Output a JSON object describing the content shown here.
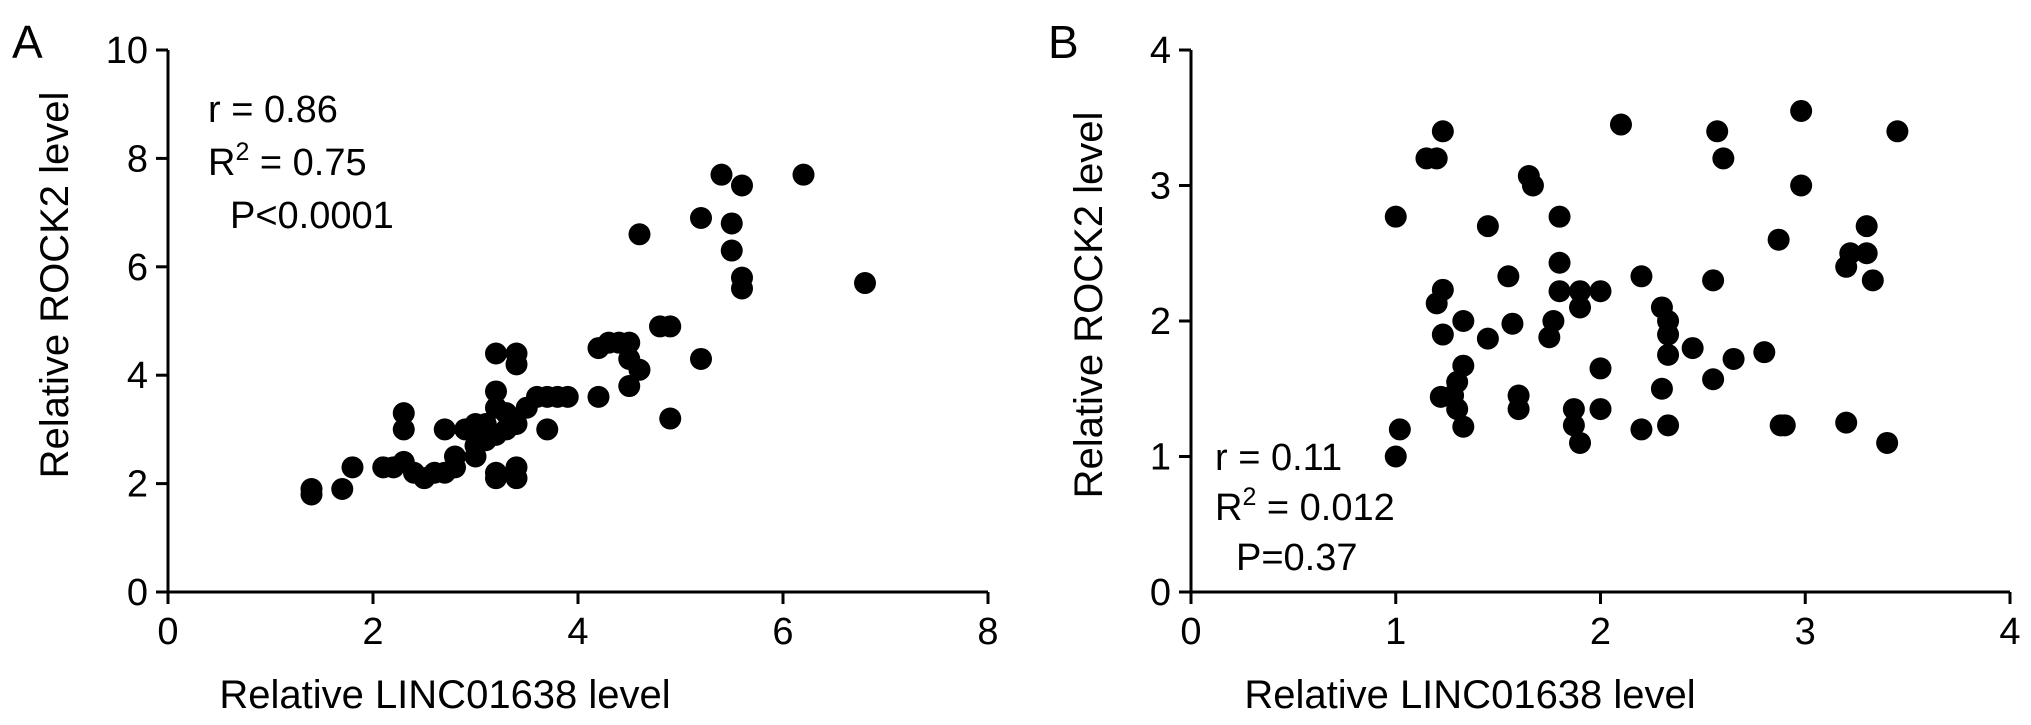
{
  "chart_data": [
    {
      "type": "scatter",
      "panel_label": "A",
      "title": "",
      "xlabel": "Relative LINC01638 level",
      "ylabel": "Relative ROCK2 level",
      "xlim": [
        0,
        8
      ],
      "ylim": [
        0,
        10
      ],
      "xticks": [
        "0",
        "2",
        "4",
        "6",
        "8"
      ],
      "yticks": [
        "0",
        "2",
        "4",
        "6",
        "8",
        "10"
      ],
      "grid": false,
      "annotations": [
        {
          "text": "r = 0.86"
        },
        {
          "text": "R",
          "sup": "2",
          "rest": " = 0.75"
        },
        {
          "text": "P<0.0001"
        }
      ],
      "points": [
        [
          1.4,
          1.8
        ],
        [
          1.4,
          1.9
        ],
        [
          1.7,
          1.9
        ],
        [
          1.8,
          2.3
        ],
        [
          2.1,
          2.3
        ],
        [
          2.2,
          2.3
        ],
        [
          2.3,
          2.4
        ],
        [
          2.3,
          3.0
        ],
        [
          2.3,
          3.3
        ],
        [
          2.4,
          2.2
        ],
        [
          2.5,
          2.1
        ],
        [
          2.6,
          2.2
        ],
        [
          2.7,
          2.2
        ],
        [
          2.7,
          3.0
        ],
        [
          2.8,
          2.3
        ],
        [
          2.8,
          2.5
        ],
        [
          2.9,
          3.0
        ],
        [
          3.0,
          2.5
        ],
        [
          3.0,
          3.1
        ],
        [
          3.0,
          2.7
        ],
        [
          3.1,
          2.8
        ],
        [
          3.1,
          3.1
        ],
        [
          3.2,
          2.9
        ],
        [
          3.2,
          3.4
        ],
        [
          3.2,
          3.7
        ],
        [
          3.2,
          4.4
        ],
        [
          3.2,
          2.2
        ],
        [
          3.2,
          2.1
        ],
        [
          3.3,
          3.3
        ],
        [
          3.3,
          3.0
        ],
        [
          3.4,
          3.1
        ],
        [
          3.4,
          4.4
        ],
        [
          3.4,
          4.2
        ],
        [
          3.4,
          2.1
        ],
        [
          3.4,
          2.3
        ],
        [
          3.5,
          3.4
        ],
        [
          3.6,
          3.6
        ],
        [
          3.7,
          3.0
        ],
        [
          3.7,
          3.6
        ],
        [
          3.8,
          3.6
        ],
        [
          3.9,
          3.6
        ],
        [
          4.2,
          3.6
        ],
        [
          4.2,
          4.5
        ],
        [
          4.3,
          4.6
        ],
        [
          4.4,
          4.6
        ],
        [
          4.5,
          4.6
        ],
        [
          4.5,
          4.3
        ],
        [
          4.5,
          3.8
        ],
        [
          4.6,
          4.1
        ],
        [
          4.6,
          6.6
        ],
        [
          4.8,
          4.9
        ],
        [
          4.9,
          4.9
        ],
        [
          4.9,
          3.2
        ],
        [
          5.2,
          6.9
        ],
        [
          5.2,
          4.3
        ],
        [
          5.4,
          7.7
        ],
        [
          5.5,
          6.8
        ],
        [
          5.5,
          6.3
        ],
        [
          5.6,
          7.5
        ],
        [
          5.6,
          5.8
        ],
        [
          5.6,
          5.6
        ],
        [
          6.2,
          7.7
        ],
        [
          6.8,
          5.7
        ]
      ]
    },
    {
      "type": "scatter",
      "panel_label": "B",
      "title": "",
      "xlabel": "Relative LINC01638 level",
      "ylabel": "Relative ROCK2 level",
      "xlim": [
        0,
        4
      ],
      "ylim": [
        0,
        4
      ],
      "xticks": [
        "0",
        "1",
        "2",
        "3",
        "4"
      ],
      "yticks": [
        "0",
        "1",
        "2",
        "3",
        "4"
      ],
      "grid": false,
      "annotations": [
        {
          "text": "r = 0.11"
        },
        {
          "text": "R",
          "sup": "2",
          "rest": " = 0.012"
        },
        {
          "text": "P=0.37"
        }
      ],
      "points": [
        [
          1.0,
          1.0
        ],
        [
          1.0,
          2.77
        ],
        [
          1.02,
          1.2
        ],
        [
          1.15,
          3.2
        ],
        [
          1.2,
          2.13
        ],
        [
          1.2,
          3.2
        ],
        [
          1.22,
          1.44
        ],
        [
          1.23,
          3.4
        ],
        [
          1.23,
          2.23
        ],
        [
          1.23,
          1.9
        ],
        [
          1.28,
          1.45
        ],
        [
          1.3,
          1.55
        ],
        [
          1.3,
          1.35
        ],
        [
          1.33,
          1.67
        ],
        [
          1.33,
          2.0
        ],
        [
          1.33,
          1.22
        ],
        [
          1.45,
          1.87
        ],
        [
          1.45,
          2.7
        ],
        [
          1.55,
          2.33
        ],
        [
          1.57,
          1.98
        ],
        [
          1.6,
          1.45
        ],
        [
          1.6,
          1.35
        ],
        [
          1.65,
          3.07
        ],
        [
          1.67,
          3.0
        ],
        [
          1.75,
          1.88
        ],
        [
          1.77,
          2.0
        ],
        [
          1.8,
          2.77
        ],
        [
          1.8,
          2.43
        ],
        [
          1.8,
          2.22
        ],
        [
          1.87,
          1.35
        ],
        [
          1.87,
          1.23
        ],
        [
          1.9,
          1.1
        ],
        [
          1.9,
          2.1
        ],
        [
          1.9,
          2.22
        ],
        [
          2.0,
          2.22
        ],
        [
          2.0,
          1.65
        ],
        [
          2.0,
          1.35
        ],
        [
          2.1,
          3.45
        ],
        [
          2.2,
          1.2
        ],
        [
          2.2,
          2.33
        ],
        [
          2.3,
          1.5
        ],
        [
          2.3,
          2.1
        ],
        [
          2.33,
          1.23
        ],
        [
          2.33,
          2.0
        ],
        [
          2.33,
          1.9
        ],
        [
          2.33,
          1.75
        ],
        [
          2.45,
          1.8
        ],
        [
          2.55,
          2.3
        ],
        [
          2.55,
          1.57
        ],
        [
          2.57,
          3.4
        ],
        [
          2.6,
          3.2
        ],
        [
          2.65,
          1.72
        ],
        [
          2.8,
          1.77
        ],
        [
          2.87,
          2.6
        ],
        [
          2.88,
          1.23
        ],
        [
          2.9,
          1.23
        ],
        [
          2.98,
          3.0
        ],
        [
          2.98,
          3.55
        ],
        [
          3.2,
          2.4
        ],
        [
          3.2,
          1.25
        ],
        [
          3.22,
          2.5
        ],
        [
          3.3,
          2.7
        ],
        [
          3.3,
          2.5
        ],
        [
          3.33,
          2.3
        ],
        [
          3.4,
          1.1
        ],
        [
          3.45,
          3.4
        ]
      ]
    }
  ]
}
